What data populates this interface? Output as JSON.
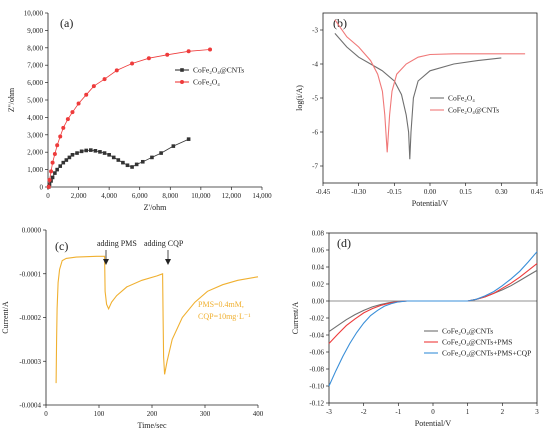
{
  "colors": {
    "black": "#333333",
    "red": "#ee3b3b",
    "gray": "#707070",
    "pink": "#f07878",
    "orange": "#f0b030",
    "blue": "#3a8fd8"
  },
  "chart_data": [
    {
      "id": "a",
      "panel_label": "(a)",
      "type": "scatter",
      "xlabel": "Z'/ohm",
      "ylabel": "Z''/ohm",
      "xlim": [
        0,
        14000
      ],
      "ylim": [
        0,
        10000
      ],
      "x_ticks": [
        "0",
        "2,000",
        "4,000",
        "6,000",
        "8,000",
        "10,000",
        "12,000",
        "14,000"
      ],
      "y_ticks": [
        "0",
        "1,000",
        "2,000",
        "3,000",
        "4,000",
        "5,000",
        "6,000",
        "7,000",
        "8,000",
        "9,000",
        "10,000"
      ],
      "legend": [
        "CoFe₂O₄@CNTs",
        "CoFe₂O₄"
      ],
      "series": [
        {
          "name": "CoFe₂O₄@CNTs",
          "marker": "square",
          "points": [
            [
              50,
              5
            ],
            [
              100,
              150
            ],
            [
              200,
              350
            ],
            [
              300,
              550
            ],
            [
              450,
              800
            ],
            [
              600,
              1000
            ],
            [
              800,
              1200
            ],
            [
              1000,
              1400
            ],
            [
              1200,
              1550
            ],
            [
              1400,
              1700
            ],
            [
              1600,
              1850
            ],
            [
              1900,
              1950
            ],
            [
              2200,
              2050
            ],
            [
              2500,
              2100
            ],
            [
              2800,
              2120
            ],
            [
              3100,
              2080
            ],
            [
              3400,
              2020
            ],
            [
              3700,
              1950
            ],
            [
              4000,
              1850
            ],
            [
              4300,
              1700
            ],
            [
              4600,
              1550
            ],
            [
              4900,
              1400
            ],
            [
              5200,
              1250
            ],
            [
              5500,
              1150
            ],
            [
              5800,
              1300
            ],
            [
              6200,
              1450
            ],
            [
              6800,
              1700
            ],
            [
              7400,
              1950
            ],
            [
              8200,
              2350
            ],
            [
              9200,
              2750
            ]
          ]
        },
        {
          "name": "CoFe₂O₄",
          "marker": "circle",
          "points": [
            [
              50,
              5
            ],
            [
              100,
              400
            ],
            [
              200,
              900
            ],
            [
              300,
              1400
            ],
            [
              450,
              1900
            ],
            [
              600,
              2400
            ],
            [
              800,
              2900
            ],
            [
              1000,
              3400
            ],
            [
              1300,
              3900
            ],
            [
              1600,
              4300
            ],
            [
              2000,
              4800
            ],
            [
              2500,
              5300
            ],
            [
              3000,
              5800
            ],
            [
              3700,
              6200
            ],
            [
              4500,
              6700
            ],
            [
              5500,
              7100
            ],
            [
              6600,
              7400
            ],
            [
              7800,
              7600
            ],
            [
              9200,
              7800
            ],
            [
              10600,
              7900
            ]
          ]
        }
      ]
    },
    {
      "id": "b",
      "panel_label": "(b)",
      "type": "line",
      "xlabel": "Potential/V",
      "ylabel": "log(i/A)",
      "xlim": [
        -0.45,
        0.45
      ],
      "ylim": [
        -7.5,
        -2.5
      ],
      "x_ticks": [
        "-0.45",
        "-0.30",
        "-0.15",
        "0.00",
        "0.15",
        "0.30",
        "0.45"
      ],
      "y_ticks": [
        "-3",
        "-4",
        "-5",
        "-6",
        "-7"
      ],
      "legend": [
        "CoFe₂O₄",
        "CoFe₂O₄@CNTs"
      ],
      "series": [
        {
          "name": "CoFe₂O₄",
          "points": [
            [
              -0.4,
              -3.1
            ],
            [
              -0.35,
              -3.5
            ],
            [
              -0.3,
              -3.8
            ],
            [
              -0.25,
              -4.0
            ],
            [
              -0.2,
              -4.2
            ],
            [
              -0.15,
              -4.5
            ],
            [
              -0.12,
              -4.9
            ],
            [
              -0.1,
              -5.5
            ],
            [
              -0.09,
              -6.0
            ],
            [
              -0.085,
              -6.8
            ],
            [
              -0.08,
              -6.0
            ],
            [
              -0.07,
              -5.0
            ],
            [
              -0.05,
              -4.5
            ],
            [
              0.0,
              -4.2
            ],
            [
              0.1,
              -4.0
            ],
            [
              0.2,
              -3.9
            ],
            [
              0.3,
              -3.82
            ]
          ]
        },
        {
          "name": "CoFe₂O₄@CNTs",
          "points": [
            [
              -0.4,
              -2.7
            ],
            [
              -0.35,
              -3.2
            ],
            [
              -0.3,
              -3.5
            ],
            [
              -0.25,
              -3.9
            ],
            [
              -0.22,
              -4.3
            ],
            [
              -0.2,
              -4.8
            ],
            [
              -0.19,
              -5.5
            ],
            [
              -0.18,
              -6.6
            ],
            [
              -0.17,
              -5.5
            ],
            [
              -0.16,
              -4.8
            ],
            [
              -0.14,
              -4.3
            ],
            [
              -0.1,
              -4.0
            ],
            [
              -0.05,
              -3.8
            ],
            [
              0.0,
              -3.72
            ],
            [
              0.1,
              -3.7
            ],
            [
              0.2,
              -3.7
            ],
            [
              0.3,
              -3.7
            ],
            [
              0.4,
              -3.7
            ]
          ]
        }
      ]
    },
    {
      "id": "c",
      "panel_label": "(c)",
      "type": "line",
      "xlabel": "Time/sec",
      "ylabel": "Current/A",
      "xlim": [
        -20,
        400
      ],
      "ylim": [
        -0.0004,
        0.0
      ],
      "x_ticks": [
        "0",
        "100",
        "200",
        "300",
        "400"
      ],
      "y_ticks": [
        "0.0000",
        "-0.0001",
        "-0.0002",
        "-0.0003",
        "-0.0004"
      ],
      "annotations": [
        "adding PMS",
        "adding CQP",
        "PMS=0.4mM,",
        "CQP=10mg·L⁻¹"
      ],
      "series": [
        {
          "name": "",
          "points": [
            [
              0,
              -0.00035
            ],
            [
              1,
              -0.00025
            ],
            [
              2,
              -0.00018
            ],
            [
              4,
              -0.00012
            ],
            [
              7,
              -9e-05
            ],
            [
              12,
              -7e-05
            ],
            [
              20,
              -6.5e-05
            ],
            [
              40,
              -6.2e-05
            ],
            [
              60,
              -6.1e-05
            ],
            [
              80,
              -6e-05
            ],
            [
              96,
              -6e-05
            ],
            [
              97,
              -0.00014
            ],
            [
              100,
              -0.00017
            ],
            [
              104,
              -0.00018
            ],
            [
              110,
              -0.000165
            ],
            [
              120,
              -0.00015
            ],
            [
              140,
              -0.00013
            ],
            [
              170,
              -0.000115
            ],
            [
              200,
              -0.000105
            ],
            [
              211,
              -0.0001
            ],
            [
              212,
              -0.0002
            ],
            [
              213,
              -0.00029
            ],
            [
              215,
              -0.00033
            ],
            [
              220,
              -0.0003
            ],
            [
              230,
              -0.00025
            ],
            [
              250,
              -0.0002
            ],
            [
              275,
              -0.000165
            ],
            [
              300,
              -0.00014
            ],
            [
              330,
              -0.000125
            ],
            [
              360,
              -0.000115
            ],
            [
              400,
              -0.000107
            ]
          ]
        }
      ]
    },
    {
      "id": "d",
      "panel_label": "(d)",
      "type": "line",
      "xlabel": "Potential/V",
      "ylabel": "Current/A",
      "xlim": [
        -3,
        3
      ],
      "ylim": [
        -0.12,
        0.08
      ],
      "x_ticks": [
        "-3",
        "-2",
        "-1",
        "0",
        "1",
        "2",
        "3"
      ],
      "y_ticks": [
        "0.08",
        "0.06",
        "0.04",
        "0.02",
        "0.00",
        "-0.02",
        "-0.04",
        "-0.06",
        "-0.08",
        "-0.10",
        "-0.12"
      ],
      "legend": [
        "CoFe₂O₄@CNTs",
        "CoFe₂O₄@CNTs+PMS",
        "CoFe₂O₄@CNTs+PMS+CQP"
      ],
      "series": [
        {
          "name": "CoFe₂O₄@CNTs",
          "points": [
            [
              -3,
              -0.036
            ],
            [
              -2.75,
              -0.029
            ],
            [
              -2.5,
              -0.022
            ],
            [
              -2.25,
              -0.016
            ],
            [
              -2,
              -0.011
            ],
            [
              -1.75,
              -0.007
            ],
            [
              -1.5,
              -0.004
            ],
            [
              -1.25,
              -0.0018
            ],
            [
              -1,
              -0.0007
            ],
            [
              -0.75,
              0
            ],
            [
              1,
              0
            ],
            [
              1.25,
              0.002
            ],
            [
              1.5,
              0.005
            ],
            [
              1.75,
              0.009
            ],
            [
              2,
              0.013
            ],
            [
              2.25,
              0.018
            ],
            [
              2.5,
              0.024
            ],
            [
              2.75,
              0.03
            ],
            [
              3,
              0.036
            ]
          ]
        },
        {
          "name": "CoFe₂O₄@CNTs+PMS",
          "points": [
            [
              -3,
              -0.05
            ],
            [
              -2.75,
              -0.039
            ],
            [
              -2.5,
              -0.029
            ],
            [
              -2.25,
              -0.021
            ],
            [
              -2,
              -0.014
            ],
            [
              -1.75,
              -0.009
            ],
            [
              -1.5,
              -0.005
            ],
            [
              -1.25,
              -0.0025
            ],
            [
              -1,
              -0.0008
            ],
            [
              -0.75,
              0
            ],
            [
              1,
              0
            ],
            [
              1.25,
              0.002
            ],
            [
              1.5,
              0.005
            ],
            [
              1.75,
              0.009
            ],
            [
              2,
              0.015
            ],
            [
              2.25,
              0.021
            ],
            [
              2.5,
              0.028
            ],
            [
              2.75,
              0.036
            ],
            [
              3,
              0.044
            ]
          ]
        },
        {
          "name": "CoFe₂O₄@CNTs+PMS+CQP",
          "points": [
            [
              -3,
              -0.1
            ],
            [
              -2.8,
              -0.082
            ],
            [
              -2.6,
              -0.065
            ],
            [
              -2.4,
              -0.05
            ],
            [
              -2.2,
              -0.037
            ],
            [
              -2,
              -0.026
            ],
            [
              -1.8,
              -0.017
            ],
            [
              -1.6,
              -0.011
            ],
            [
              -1.4,
              -0.006
            ],
            [
              -1.2,
              -0.003
            ],
            [
              -1,
              -0.001
            ],
            [
              -0.75,
              0
            ],
            [
              1,
              0
            ],
            [
              1.25,
              0.002
            ],
            [
              1.5,
              0.006
            ],
            [
              1.75,
              0.011
            ],
            [
              2,
              0.018
            ],
            [
              2.25,
              0.026
            ],
            [
              2.5,
              0.035
            ],
            [
              2.75,
              0.046
            ],
            [
              3,
              0.058
            ]
          ]
        }
      ]
    }
  ]
}
